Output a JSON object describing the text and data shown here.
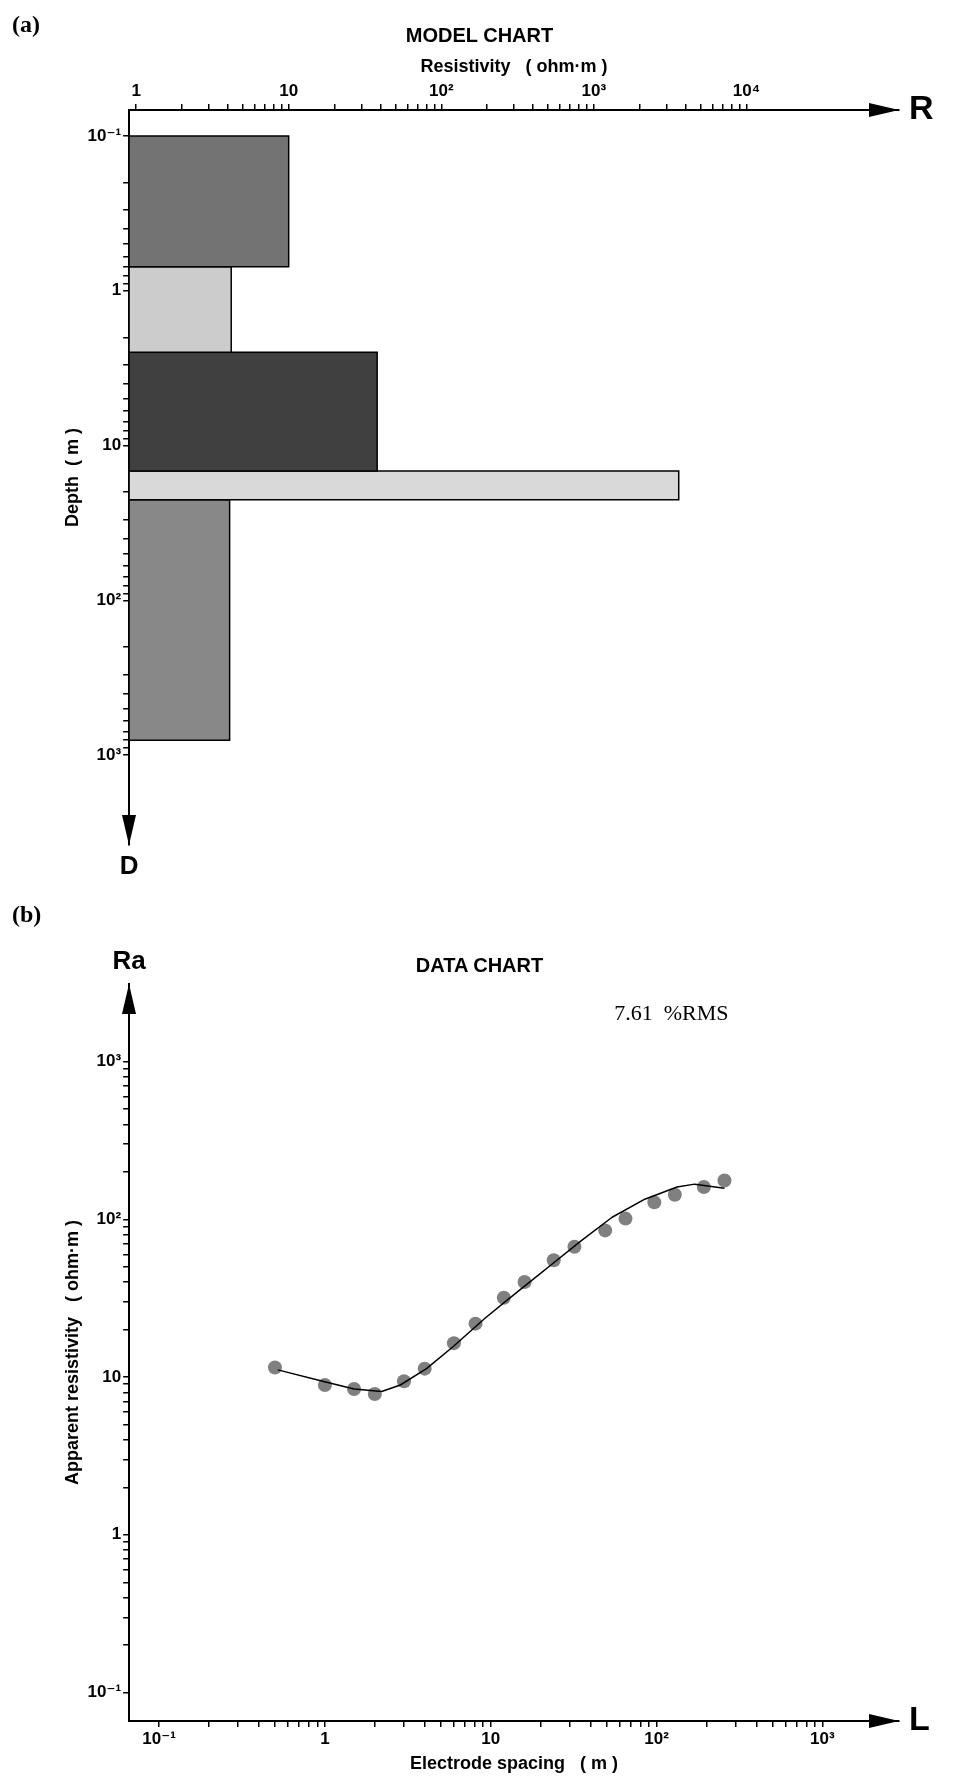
{
  "chart_data": [
    {
      "type": "histogram",
      "title": "MODEL CHART",
      "xlabel": "Resistivity   ( ohm·m )",
      "ylabel": "Depth  ( m )",
      "orientation": "horizontal",
      "log": "xy",
      "bins": [
        0.1,
        0.7,
        2.5,
        14.6,
        22.4,
        800
      ],
      "values": [
        10,
        4.2,
        38,
        3600,
        4.1
      ],
      "colors": [
        "#737373",
        "#cccccc",
        "#404040",
        "#d9d9d9",
        "#888888"
      ],
      "xlim": [
        0.9,
        100000
      ],
      "ylim": [
        3800,
        0.068
      ],
      "xticks": [
        {
          "value": 1,
          "label": "1"
        },
        {
          "value": 2,
          "label": null
        },
        {
          "value": 3,
          "label": null
        },
        {
          "value": 4,
          "label": null
        },
        {
          "value": 5,
          "label": null
        },
        {
          "value": 6,
          "label": null
        },
        {
          "value": 7,
          "label": null
        },
        {
          "value": 8,
          "label": null
        },
        {
          "value": 9,
          "label": null
        },
        {
          "value": 10,
          "label": "10"
        },
        {
          "value": 20,
          "label": null
        },
        {
          "value": 30,
          "label": null
        },
        {
          "value": 40,
          "label": null
        },
        {
          "value": 50,
          "label": null
        },
        {
          "value": 60,
          "label": null
        },
        {
          "value": 70,
          "label": null
        },
        {
          "value": 80,
          "label": null
        },
        {
          "value": 90,
          "label": null
        },
        {
          "value": 100,
          "label": "10²"
        },
        {
          "value": 200,
          "label": null
        },
        {
          "value": 300,
          "label": null
        },
        {
          "value": 400,
          "label": null
        },
        {
          "value": 500,
          "label": null
        },
        {
          "value": 600,
          "label": null
        },
        {
          "value": 700,
          "label": null
        },
        {
          "value": 800,
          "label": null
        },
        {
          "value": 900,
          "label": null
        },
        {
          "value": 1000,
          "label": "10³"
        },
        {
          "value": 2000,
          "label": null
        },
        {
          "value": 3000,
          "label": null
        },
        {
          "value": 4000,
          "label": null
        },
        {
          "value": 5000,
          "label": null
        },
        {
          "value": 6000,
          "label": null
        },
        {
          "value": 7000,
          "label": null
        },
        {
          "value": 8000,
          "label": null
        },
        {
          "value": 9000,
          "label": null
        },
        {
          "value": 10000,
          "label": "10⁴"
        }
      ],
      "yticks": [
        {
          "value": 0.1,
          "label": "10⁻¹"
        },
        {
          "value": 0.2,
          "label": null
        },
        {
          "value": 0.3,
          "label": null
        },
        {
          "value": 0.4,
          "label": null
        },
        {
          "value": 0.5,
          "label": null
        },
        {
          "value": 0.6,
          "label": null
        },
        {
          "value": 0.7,
          "label": null
        },
        {
          "value": 0.8,
          "label": null
        },
        {
          "value": 0.9,
          "label": null
        },
        {
          "value": 1,
          "label": "1"
        },
        {
          "value": 2,
          "label": null
        },
        {
          "value": 3,
          "label": null
        },
        {
          "value": 4,
          "label": null
        },
        {
          "value": 5,
          "label": null
        },
        {
          "value": 6,
          "label": null
        },
        {
          "value": 7,
          "label": null
        },
        {
          "value": 8,
          "label": null
        },
        {
          "value": 9,
          "label": null
        },
        {
          "value": 10,
          "label": "10"
        },
        {
          "value": 20,
          "label": null
        },
        {
          "value": 30,
          "label": null
        },
        {
          "value": 40,
          "label": null
        },
        {
          "value": 50,
          "label": null
        },
        {
          "value": 60,
          "label": null
        },
        {
          "value": 70,
          "label": null
        },
        {
          "value": 80,
          "label": null
        },
        {
          "value": 90,
          "label": null
        },
        {
          "value": 100,
          "label": "10²"
        },
        {
          "value": 200,
          "label": null
        },
        {
          "value": 300,
          "label": null
        },
        {
          "value": 400,
          "label": null
        },
        {
          "value": 500,
          "label": null
        },
        {
          "value": 600,
          "label": null
        },
        {
          "value": 700,
          "label": null
        },
        {
          "value": 800,
          "label": null
        },
        {
          "value": 900,
          "label": null
        },
        {
          "value": 1000,
          "label": "10³"
        }
      ],
      "annotations": [
        "(a)",
        "R",
        "D"
      ]
    },
    {
      "type": "scatter",
      "title": "DATA CHART",
      "xlabel": "Electrode spacing   ( m )",
      "ylabel": "Apparent resistivity   ( ohm·m )",
      "log": "xy",
      "marker": "circle",
      "series": [
        {
          "type": "scatter",
          "color": "#808080",
          "x": [
            0.5,
            1,
            1.5,
            2.0,
            3.0,
            4.0,
            6.0,
            8.1,
            12,
            16,
            24,
            32,
            49,
            65,
            97,
            129,
            193,
            257
          ],
          "values": [
            11.5,
            8.9,
            8.4,
            7.8,
            9.4,
            11.3,
            16.4,
            21.8,
            31.8,
            40,
            55,
            67,
            85,
            101,
            128,
            143,
            160,
            176
          ]
        },
        {
          "type": "line",
          "marker": "none",
          "color": "#000000",
          "x": [
            0.52,
            0.97,
            1.5,
            2.2,
            2.85,
            4.1,
            5.9,
            9.2,
            14.3,
            22.3,
            34.9,
            54,
            85,
            133,
            170,
            257
          ],
          "values": [
            11.1,
            9.4,
            8.4,
            8.1,
            8.9,
            11.3,
            15.5,
            23.5,
            34.3,
            49.8,
            72.7,
            103,
            134,
            160,
            167,
            157
          ]
        }
      ],
      "xlim": [
        0.066,
        2900
      ],
      "ylim": [
        0.066,
        3100
      ],
      "xticks": [
        {
          "value": 0.1,
          "label": "10⁻¹"
        },
        {
          "value": 0.2,
          "label": null
        },
        {
          "value": 0.3,
          "label": null
        },
        {
          "value": 0.4,
          "label": null
        },
        {
          "value": 0.5,
          "label": null
        },
        {
          "value": 0.6,
          "label": null
        },
        {
          "value": 0.7,
          "label": null
        },
        {
          "value": 0.8,
          "label": null
        },
        {
          "value": 0.9,
          "label": null
        },
        1,
        {
          "value": 2,
          "label": null
        },
        {
          "value": 3,
          "label": null
        },
        {
          "value": 4,
          "label": null
        },
        {
          "value": 5,
          "label": null
        },
        {
          "value": 6,
          "label": null
        },
        {
          "value": 7,
          "label": null
        },
        {
          "value": 8,
          "label": null
        },
        {
          "value": 9,
          "label": null
        },
        10,
        {
          "value": 20,
          "label": null
        },
        {
          "value": 30,
          "label": null
        },
        {
          "value": 40,
          "label": null
        },
        {
          "value": 50,
          "label": null
        },
        {
          "value": 60,
          "label": null
        },
        {
          "value": 70,
          "label": null
        },
        {
          "value": 80,
          "label": null
        },
        {
          "value": 90,
          "label": null
        },
        {
          "value": 100,
          "label": "10²"
        },
        {
          "value": 200,
          "label": null
        },
        {
          "value": 300,
          "label": null
        },
        {
          "value": 400,
          "label": null
        },
        {
          "value": 500,
          "label": null
        },
        {
          "value": 600,
          "label": null
        },
        {
          "value": 700,
          "label": null
        },
        {
          "value": 800,
          "label": null
        },
        {
          "value": 900,
          "label": null
        },
        {
          "value": 1000,
          "label": "10³"
        }
      ],
      "yticks": [
        {
          "value": 0.1,
          "label": "10⁻¹"
        },
        {
          "value": 0.2,
          "label": null
        },
        {
          "value": 0.3,
          "label": null
        },
        {
          "value": 0.4,
          "label": null
        },
        {
          "value": 0.5,
          "label": null
        },
        {
          "value": 0.6,
          "label": null
        },
        {
          "value": 0.7,
          "label": null
        },
        {
          "value": 0.8,
          "label": null
        },
        {
          "value": 0.9,
          "label": null
        },
        1,
        {
          "value": 2,
          "label": null
        },
        {
          "value": 3,
          "label": null
        },
        {
          "value": 4,
          "label": null
        },
        {
          "value": 5,
          "label": null
        },
        {
          "value": 6,
          "label": null
        },
        {
          "value": 7,
          "label": null
        },
        {
          "value": 8,
          "label": null
        },
        {
          "value": 9,
          "label": null
        },
        10,
        {
          "value": 20,
          "label": null
        },
        {
          "value": 30,
          "label": null
        },
        {
          "value": 40,
          "label": null
        },
        {
          "value": 50,
          "label": null
        },
        {
          "value": 60,
          "label": null
        },
        {
          "value": 70,
          "label": null
        },
        {
          "value": 80,
          "label": null
        },
        {
          "value": 90,
          "label": null
        },
        {
          "value": 100,
          "label": "10²"
        },
        {
          "value": 200,
          "label": null
        },
        {
          "value": 300,
          "label": null
        },
        {
          "value": 400,
          "label": null
        },
        {
          "value": 500,
          "label": null
        },
        {
          "value": 600,
          "label": null
        },
        {
          "value": 700,
          "label": null
        },
        {
          "value": 800,
          "label": null
        },
        {
          "value": 900,
          "label": null
        },
        {
          "value": 1000,
          "label": "10³"
        }
      ],
      "annotations": [
        "(b)",
        "L",
        "Ra",
        "7.61  %RMS"
      ]
    }
  ]
}
